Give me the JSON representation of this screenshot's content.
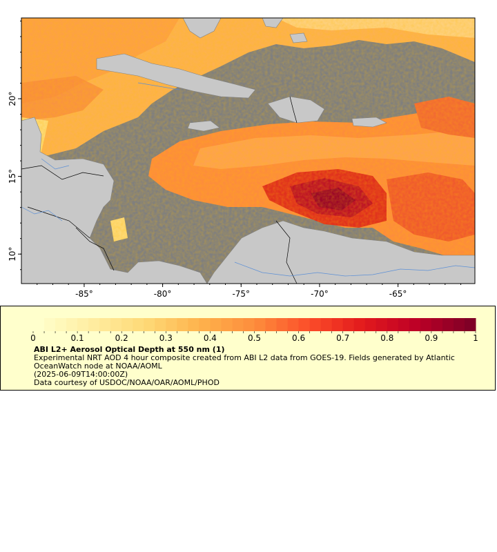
{
  "map": {
    "lon_ticks": [
      {
        "lon": -85,
        "label": "-85°"
      },
      {
        "lon": -80,
        "label": "-80°"
      },
      {
        "lon": -75,
        "label": "-75°"
      },
      {
        "lon": -70,
        "label": "-70°"
      },
      {
        "lon": -65,
        "label": "-65°"
      }
    ],
    "lat_ticks": [
      {
        "lat": 20,
        "label": "20°"
      },
      {
        "lat": 15,
        "label": "15°"
      },
      {
        "lat": 10,
        "label": "10°"
      }
    ],
    "lon_range": [
      -89,
      -60.1
    ],
    "lat_range": [
      8.1,
      25.2
    ],
    "colors": {
      "ocean_no_data": "#7f7f7f",
      "land": "#c8c8c8",
      "rivers": "#5b8fd6",
      "borders": "#000000"
    }
  },
  "legend": {
    "title": "ABI L2+ Aerosol Optical Depth at 550 nm (1)",
    "description": "Experimental NRT AOD 4 hour composite created from ABI L2 data from GOES-19. Fields generated by Atlantic OceanWatch node at NOAA/AOML",
    "timestamp": "(2025-06-09T14:00:00Z)",
    "credit": "Data courtesy of USDOC/NOAA/OAR/AOML/PHOD",
    "ticks": [
      {
        "value": 0,
        "label": "0"
      },
      {
        "value": 0.1,
        "label": "0.1"
      },
      {
        "value": 0.2,
        "label": "0.2"
      },
      {
        "value": 0.3,
        "label": "0.3"
      },
      {
        "value": 0.4,
        "label": "0.4"
      },
      {
        "value": 0.5,
        "label": "0.5"
      },
      {
        "value": 0.6,
        "label": "0.6"
      },
      {
        "value": 0.7,
        "label": "0.7"
      },
      {
        "value": 0.8,
        "label": "0.8"
      },
      {
        "value": 0.9,
        "label": "0.9"
      },
      {
        "value": 1,
        "label": "1"
      }
    ],
    "range": [
      0,
      1
    ],
    "colormap": [
      "#ffffcc",
      "#ffeda0",
      "#fed976",
      "#feb24c",
      "#fd8d3c",
      "#fc4e2a",
      "#e31a1c",
      "#bd0026",
      "#800026"
    ]
  }
}
